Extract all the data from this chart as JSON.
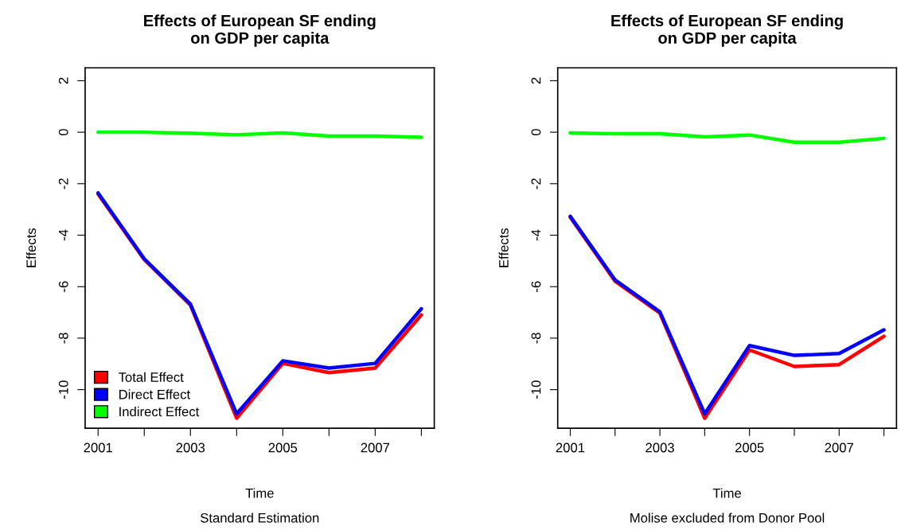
{
  "chart_data": [
    {
      "type": "line",
      "title": "Effects of European SF ending\non GDP per capita",
      "subtitle": "Standard Estimation",
      "xlabel": "Time",
      "ylabel": "Effects",
      "x": [
        2001,
        2002,
        2003,
        2004,
        2005,
        2006,
        2007,
        2008
      ],
      "series": [
        {
          "name": "Total Effect",
          "color": "#ff0000",
          "values": [
            -2.4,
            -4.95,
            -6.72,
            -11.11,
            -8.98,
            -9.34,
            -9.16,
            -7.1
          ]
        },
        {
          "name": "Direct Effect",
          "color": "#0000ff",
          "values": [
            -2.36,
            -4.92,
            -6.68,
            -10.94,
            -8.88,
            -9.16,
            -8.98,
            -6.86
          ]
        },
        {
          "name": "Indirect Effect",
          "color": "#00ff00",
          "values": [
            0,
            0,
            -0.04,
            -0.1,
            -0.03,
            -0.15,
            -0.15,
            -0.2
          ]
        }
      ],
      "xlim": [
        2000.72,
        2008.28
      ],
      "ylim": [
        -11.5,
        2.5
      ],
      "xticks": [
        2001,
        {
          "value": 2002,
          "label": null
        },
        2003,
        {
          "value": 2004,
          "label": null
        },
        2005,
        {
          "value": 2006,
          "label": null
        },
        2007,
        {
          "value": 2008,
          "label": null
        }
      ],
      "yticks": [
        -10,
        -8,
        -6,
        -4,
        -2,
        0,
        2
      ],
      "legend": "bottom left",
      "grid": false,
      "line_style": "solid",
      "marker": "none"
    },
    {
      "type": "line",
      "title": "Effects of European SF ending\non GDP per capita",
      "subtitle": "Molise excluded from Donor Pool",
      "xlabel": "Time",
      "ylabel": "Effects",
      "x": [
        2001,
        2002,
        2003,
        2004,
        2005,
        2006,
        2007,
        2008
      ],
      "series": [
        {
          "color": "#ff0000",
          "values": [
            -3.3,
            -5.79,
            -7.03,
            -11.11,
            -8.46,
            -9.1,
            -9.03,
            -7.93
          ]
        },
        {
          "color": "#0000ff",
          "values": [
            -3.27,
            -5.74,
            -6.98,
            -10.94,
            -8.29,
            -8.67,
            -8.6,
            -7.68
          ]
        },
        {
          "color": "#00ff00",
          "values": [
            -0.03,
            -0.06,
            -0.06,
            -0.18,
            -0.11,
            -0.39,
            -0.39,
            -0.24
          ]
        }
      ],
      "xlim": [
        2000.72,
        2008.28
      ],
      "ylim": [
        -11.5,
        2.5
      ],
      "xticks": [
        2001,
        {
          "value": 2002,
          "label": null
        },
        2003,
        {
          "value": 2004,
          "label": null
        },
        2005,
        {
          "value": 2006,
          "label": null
        },
        2007,
        {
          "value": 2008,
          "label": null
        }
      ],
      "yticks": [
        -10,
        -8,
        -6,
        -4,
        -2,
        0,
        2
      ],
      "legend": false,
      "grid": false,
      "line_style": "solid",
      "marker": "none"
    }
  ]
}
